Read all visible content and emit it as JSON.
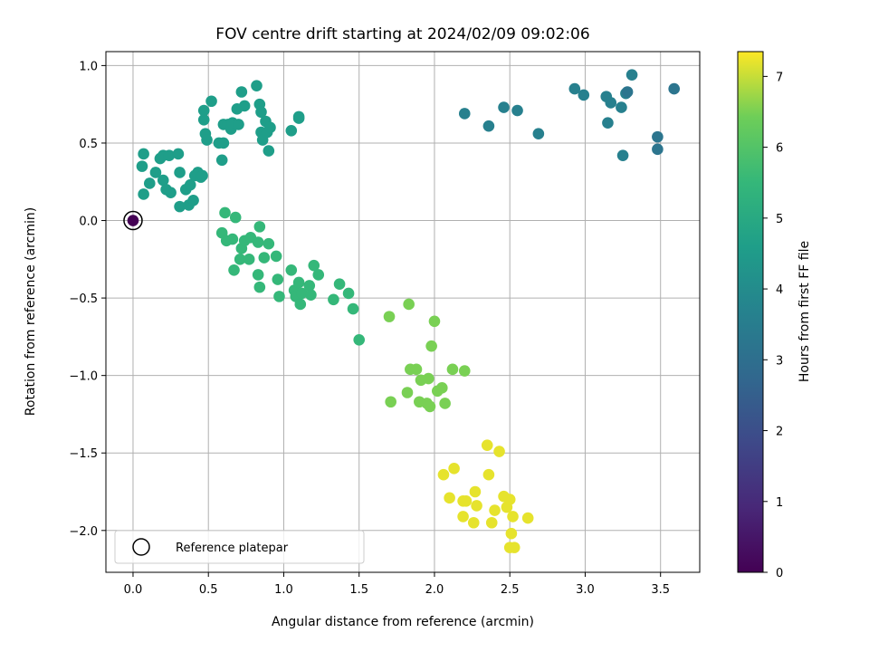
{
  "chart_data": {
    "type": "scatter",
    "title": "FOV centre drift starting at 2024/02/09 09:02:06",
    "xlabel": "Angular distance from reference (arcmin)",
    "ylabel": "Rotation from reference (arcmin)",
    "xlim": [
      -0.18,
      3.76
    ],
    "ylim": [
      -2.27,
      1.09
    ],
    "xticks": [
      0.0,
      0.5,
      1.0,
      1.5,
      2.0,
      2.5,
      3.0,
      3.5
    ],
    "xtick_labels": [
      "0.0",
      "0.5",
      "1.0",
      "1.5",
      "2.0",
      "2.5",
      "3.0",
      "3.5"
    ],
    "yticks": [
      1.0,
      0.5,
      0.0,
      -0.5,
      -1.0,
      -1.5,
      -2.0
    ],
    "ytick_labels": [
      "1.0",
      "0.5",
      "0.0",
      "−0.5",
      "−1.0",
      "−1.5",
      "−2.0"
    ],
    "grid": true,
    "legend": {
      "position": "lower-left",
      "entries": [
        "Reference platepar"
      ]
    },
    "colorbar": {
      "label": "Hours from first FF file",
      "colormap": "viridis",
      "range": [
        0,
        7.35
      ],
      "ticks": [
        0,
        1,
        2,
        3,
        4,
        5,
        6,
        7
      ],
      "tick_labels": [
        "0",
        "1",
        "2",
        "3",
        "4",
        "5",
        "6",
        "7"
      ]
    },
    "reference_point": {
      "x": 0.0,
      "y": 0.0,
      "c": 0.0
    },
    "points": [
      {
        "x": 2.2,
        "y": 0.69,
        "c": 3.6
      },
      {
        "x": 2.36,
        "y": 0.61,
        "c": 3.6
      },
      {
        "x": 2.46,
        "y": 0.73,
        "c": 3.6
      },
      {
        "x": 2.55,
        "y": 0.71,
        "c": 3.6
      },
      {
        "x": 2.69,
        "y": 0.56,
        "c": 3.6
      },
      {
        "x": 2.93,
        "y": 0.85,
        "c": 3.6
      },
      {
        "x": 2.99,
        "y": 0.81,
        "c": 3.6
      },
      {
        "x": 3.14,
        "y": 0.8,
        "c": 3.6
      },
      {
        "x": 3.17,
        "y": 0.76,
        "c": 3.6
      },
      {
        "x": 3.15,
        "y": 0.63,
        "c": 3.6
      },
      {
        "x": 3.24,
        "y": 0.73,
        "c": 3.6
      },
      {
        "x": 3.27,
        "y": 0.82,
        "c": 3.6
      },
      {
        "x": 3.31,
        "y": 0.94,
        "c": 3.6
      },
      {
        "x": 3.25,
        "y": 0.42,
        "c": 3.6
      },
      {
        "x": 3.28,
        "y": 0.83,
        "c": 3.2
      },
      {
        "x": 3.48,
        "y": 0.54,
        "c": 3.2
      },
      {
        "x": 3.48,
        "y": 0.46,
        "c": 3.2
      },
      {
        "x": 3.59,
        "y": 0.85,
        "c": 3.2
      },
      {
        "x": 0.07,
        "y": 0.43,
        "c": 4.6
      },
      {
        "x": 0.06,
        "y": 0.35,
        "c": 4.6
      },
      {
        "x": 0.07,
        "y": 0.17,
        "c": 4.6
      },
      {
        "x": 0.11,
        "y": 0.24,
        "c": 4.6
      },
      {
        "x": 0.15,
        "y": 0.31,
        "c": 4.6
      },
      {
        "x": 0.18,
        "y": 0.4,
        "c": 4.6
      },
      {
        "x": 0.2,
        "y": 0.42,
        "c": 4.6
      },
      {
        "x": 0.2,
        "y": 0.26,
        "c": 4.6
      },
      {
        "x": 0.22,
        "y": 0.2,
        "c": 4.6
      },
      {
        "x": 0.24,
        "y": 0.42,
        "c": 4.6
      },
      {
        "x": 0.25,
        "y": 0.18,
        "c": 4.6
      },
      {
        "x": 0.3,
        "y": 0.43,
        "c": 4.6
      },
      {
        "x": 0.31,
        "y": 0.31,
        "c": 4.6
      },
      {
        "x": 0.31,
        "y": 0.09,
        "c": 4.6
      },
      {
        "x": 0.35,
        "y": 0.2,
        "c": 4.6
      },
      {
        "x": 0.37,
        "y": 0.1,
        "c": 4.6
      },
      {
        "x": 0.38,
        "y": 0.23,
        "c": 4.6
      },
      {
        "x": 0.4,
        "y": 0.13,
        "c": 4.6
      },
      {
        "x": 0.41,
        "y": 0.29,
        "c": 4.6
      },
      {
        "x": 0.43,
        "y": 0.31,
        "c": 4.6
      },
      {
        "x": 0.45,
        "y": 0.28,
        "c": 4.6
      },
      {
        "x": 0.46,
        "y": 0.29,
        "c": 4.6
      },
      {
        "x": 0.47,
        "y": 0.65,
        "c": 4.6
      },
      {
        "x": 0.47,
        "y": 0.71,
        "c": 4.6
      },
      {
        "x": 0.48,
        "y": 0.56,
        "c": 4.6
      },
      {
        "x": 0.49,
        "y": 0.52,
        "c": 4.6
      },
      {
        "x": 0.52,
        "y": 0.77,
        "c": 4.6
      },
      {
        "x": 0.57,
        "y": 0.5,
        "c": 4.6
      },
      {
        "x": 0.59,
        "y": 0.39,
        "c": 4.6
      },
      {
        "x": 0.6,
        "y": 0.5,
        "c": 4.6
      },
      {
        "x": 0.6,
        "y": 0.62,
        "c": 4.6
      },
      {
        "x": 0.63,
        "y": 0.62,
        "c": 4.6
      },
      {
        "x": 0.65,
        "y": 0.59,
        "c": 4.6
      },
      {
        "x": 0.66,
        "y": 0.63,
        "c": 4.6
      },
      {
        "x": 0.69,
        "y": 0.72,
        "c": 4.6
      },
      {
        "x": 0.7,
        "y": 0.62,
        "c": 4.6
      },
      {
        "x": 0.72,
        "y": 0.83,
        "c": 4.6
      },
      {
        "x": 0.74,
        "y": 0.74,
        "c": 4.6
      },
      {
        "x": 0.82,
        "y": 0.87,
        "c": 4.6
      },
      {
        "x": 0.84,
        "y": 0.75,
        "c": 4.6
      },
      {
        "x": 0.85,
        "y": 0.7,
        "c": 4.6
      },
      {
        "x": 0.85,
        "y": 0.57,
        "c": 4.6
      },
      {
        "x": 0.86,
        "y": 0.52,
        "c": 4.6
      },
      {
        "x": 0.88,
        "y": 0.64,
        "c": 4.6
      },
      {
        "x": 0.89,
        "y": 0.57,
        "c": 4.6
      },
      {
        "x": 0.9,
        "y": 0.45,
        "c": 4.6
      },
      {
        "x": 0.91,
        "y": 0.6,
        "c": 4.6
      },
      {
        "x": 1.05,
        "y": 0.58,
        "c": 4.6
      },
      {
        "x": 1.1,
        "y": 0.67,
        "c": 4.6
      },
      {
        "x": 1.1,
        "y": 0.66,
        "c": 4.6
      },
      {
        "x": 0.59,
        "y": -0.08,
        "c": 5.5
      },
      {
        "x": 0.61,
        "y": 0.05,
        "c": 5.5
      },
      {
        "x": 0.62,
        "y": -0.13,
        "c": 5.5
      },
      {
        "x": 0.66,
        "y": -0.12,
        "c": 5.5
      },
      {
        "x": 0.68,
        "y": 0.02,
        "c": 5.5
      },
      {
        "x": 0.67,
        "y": -0.32,
        "c": 5.5
      },
      {
        "x": 0.71,
        "y": -0.25,
        "c": 5.5
      },
      {
        "x": 0.72,
        "y": -0.18,
        "c": 5.5
      },
      {
        "x": 0.74,
        "y": -0.13,
        "c": 5.5
      },
      {
        "x": 0.77,
        "y": -0.25,
        "c": 5.5
      },
      {
        "x": 0.78,
        "y": -0.11,
        "c": 5.5
      },
      {
        "x": 0.83,
        "y": -0.14,
        "c": 5.5
      },
      {
        "x": 0.84,
        "y": -0.04,
        "c": 5.5
      },
      {
        "x": 0.83,
        "y": -0.35,
        "c": 5.5
      },
      {
        "x": 0.84,
        "y": -0.43,
        "c": 5.5
      },
      {
        "x": 0.87,
        "y": -0.24,
        "c": 5.5
      },
      {
        "x": 0.9,
        "y": -0.15,
        "c": 5.5
      },
      {
        "x": 0.95,
        "y": -0.23,
        "c": 5.5
      },
      {
        "x": 0.96,
        "y": -0.38,
        "c": 5.5
      },
      {
        "x": 0.97,
        "y": -0.49,
        "c": 5.5
      },
      {
        "x": 1.05,
        "y": -0.32,
        "c": 5.5
      },
      {
        "x": 1.07,
        "y": -0.45,
        "c": 5.5
      },
      {
        "x": 1.08,
        "y": -0.49,
        "c": 5.5
      },
      {
        "x": 1.1,
        "y": -0.4,
        "c": 5.5
      },
      {
        "x": 1.11,
        "y": -0.54,
        "c": 5.5
      },
      {
        "x": 1.12,
        "y": -0.47,
        "c": 5.5
      },
      {
        "x": 1.17,
        "y": -0.42,
        "c": 5.5
      },
      {
        "x": 1.18,
        "y": -0.48,
        "c": 5.5
      },
      {
        "x": 1.2,
        "y": -0.29,
        "c": 5.5
      },
      {
        "x": 1.23,
        "y": -0.35,
        "c": 5.5
      },
      {
        "x": 1.33,
        "y": -0.51,
        "c": 5.5
      },
      {
        "x": 1.37,
        "y": -0.41,
        "c": 5.5
      },
      {
        "x": 1.43,
        "y": -0.47,
        "c": 5.5
      },
      {
        "x": 1.46,
        "y": -0.57,
        "c": 5.5
      },
      {
        "x": 1.5,
        "y": -0.77,
        "c": 5.5
      },
      {
        "x": 1.7,
        "y": -0.62,
        "c": 6.5
      },
      {
        "x": 1.83,
        "y": -0.54,
        "c": 6.5
      },
      {
        "x": 1.71,
        "y": -1.17,
        "c": 6.5
      },
      {
        "x": 1.82,
        "y": -1.11,
        "c": 6.5
      },
      {
        "x": 1.84,
        "y": -0.96,
        "c": 6.5
      },
      {
        "x": 1.88,
        "y": -0.96,
        "c": 6.5
      },
      {
        "x": 1.9,
        "y": -1.17,
        "c": 6.5
      },
      {
        "x": 1.91,
        "y": -1.03,
        "c": 6.5
      },
      {
        "x": 1.95,
        "y": -1.18,
        "c": 6.5
      },
      {
        "x": 1.96,
        "y": -1.02,
        "c": 6.5
      },
      {
        "x": 1.97,
        "y": -1.2,
        "c": 6.5
      },
      {
        "x": 1.98,
        "y": -0.81,
        "c": 6.5
      },
      {
        "x": 2.0,
        "y": -0.65,
        "c": 6.5
      },
      {
        "x": 2.02,
        "y": -1.1,
        "c": 6.5
      },
      {
        "x": 2.05,
        "y": -1.08,
        "c": 6.5
      },
      {
        "x": 2.07,
        "y": -1.18,
        "c": 6.5
      },
      {
        "x": 2.12,
        "y": -0.96,
        "c": 6.5
      },
      {
        "x": 2.2,
        "y": -0.97,
        "c": 6.5
      },
      {
        "x": 2.06,
        "y": -1.64,
        "c": 7.2
      },
      {
        "x": 2.1,
        "y": -1.79,
        "c": 7.2
      },
      {
        "x": 2.13,
        "y": -1.6,
        "c": 7.2
      },
      {
        "x": 2.19,
        "y": -1.81,
        "c": 7.2
      },
      {
        "x": 2.19,
        "y": -1.91,
        "c": 7.2
      },
      {
        "x": 2.21,
        "y": -1.81,
        "c": 7.2
      },
      {
        "x": 2.26,
        "y": -1.95,
        "c": 7.2
      },
      {
        "x": 2.27,
        "y": -1.75,
        "c": 7.2
      },
      {
        "x": 2.28,
        "y": -1.84,
        "c": 7.2
      },
      {
        "x": 2.35,
        "y": -1.45,
        "c": 7.2
      },
      {
        "x": 2.36,
        "y": -1.64,
        "c": 7.2
      },
      {
        "x": 2.38,
        "y": -1.95,
        "c": 7.2
      },
      {
        "x": 2.4,
        "y": -1.87,
        "c": 7.2
      },
      {
        "x": 2.43,
        "y": -1.49,
        "c": 7.2
      },
      {
        "x": 2.46,
        "y": -1.78,
        "c": 7.2
      },
      {
        "x": 2.48,
        "y": -1.85,
        "c": 7.2
      },
      {
        "x": 2.5,
        "y": -1.8,
        "c": 7.2
      },
      {
        "x": 2.51,
        "y": -2.02,
        "c": 7.2
      },
      {
        "x": 2.52,
        "y": -1.91,
        "c": 7.2
      },
      {
        "x": 2.5,
        "y": -2.11,
        "c": 7.2
      },
      {
        "x": 2.53,
        "y": -2.11,
        "c": 7.2
      },
      {
        "x": 2.62,
        "y": -1.92,
        "c": 7.2
      }
    ]
  }
}
